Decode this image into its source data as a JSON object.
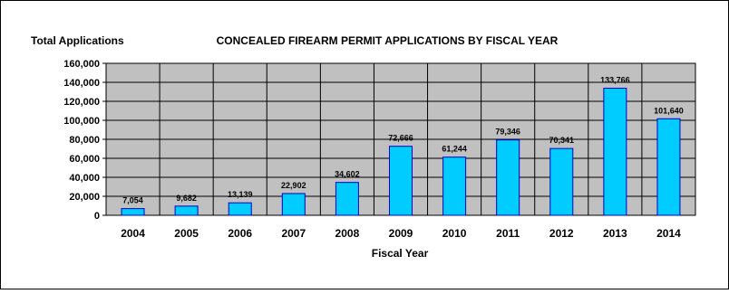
{
  "chart_data": {
    "type": "bar",
    "title": "CONCEALED FIREARM PERMIT APPLICATIONS BY FISCAL YEAR",
    "ylabel": "Total Applications",
    "xlabel": "Fiscal Year",
    "categories": [
      "2004",
      "2005",
      "2006",
      "2007",
      "2008",
      "2009",
      "2010",
      "2011",
      "2012",
      "2013",
      "2014"
    ],
    "values": [
      7054,
      9682,
      13139,
      22902,
      34602,
      72666,
      61244,
      79346,
      70341,
      133766,
      101640
    ],
    "value_labels": [
      "7,054",
      "9,682",
      "13,139",
      "22,902",
      "34,602",
      "72,666",
      "61,244",
      "79,346",
      "70,341",
      "133,766",
      "101,640"
    ],
    "ylim": [
      0,
      160000
    ],
    "yticks": [
      0,
      20000,
      40000,
      60000,
      80000,
      100000,
      120000,
      140000,
      160000
    ],
    "ytick_labels": [
      "0",
      "20,000",
      "40,000",
      "60,000",
      "80,000",
      "100,000",
      "120,000",
      "140,000",
      "160,000"
    ],
    "grid": true,
    "legend": "none",
    "colors": {
      "bar_fill": "#00ccff",
      "bar_stroke": "#0000cc",
      "plot_background": "#c0c0c0",
      "gridline": "#000000",
      "frame": "#000000"
    }
  }
}
